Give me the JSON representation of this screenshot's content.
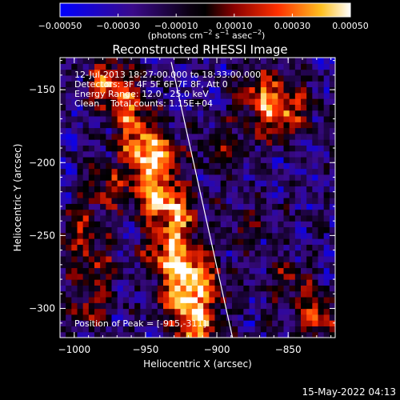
{
  "chart_data": {
    "type": "heatmap",
    "title": "Reconstructed RHESSI Image",
    "xlabel": "Heliocentric X (arcsec)",
    "ylabel": "Heliocentric Y (arcsec)",
    "xlim": [
      -1010,
      -817
    ],
    "ylim": [
      -320,
      -128
    ],
    "x_ticks": [
      {
        "value": -1000,
        "label": "−1000"
      },
      {
        "value": -950,
        "label": "−950"
      },
      {
        "value": -900,
        "label": "−900"
      },
      {
        "value": -850,
        "label": "−850"
      }
    ],
    "y_ticks": [
      {
        "value": -150,
        "label": "−150"
      },
      {
        "value": -200,
        "label": "−200"
      },
      {
        "value": -250,
        "label": "−250"
      },
      {
        "value": -300,
        "label": "−300"
      }
    ],
    "colorbar": {
      "min": -0.0005,
      "max": 0.0005,
      "ticks": [
        {
          "value": -0.0005,
          "label": "−0.00050"
        },
        {
          "value": -0.0003,
          "label": "−0.00030"
        },
        {
          "value": -0.0001,
          "label": "−0.00010"
        },
        {
          "value": 0.0001,
          "label": "0.00010"
        },
        {
          "value": 0.0003,
          "label": "0.00030"
        },
        {
          "value": 0.0005,
          "label": "0.00050"
        }
      ],
      "unit_parts": [
        "(photons cm",
        "−2",
        " s",
        "−1",
        " asec",
        "−2",
        ")"
      ]
    },
    "info_lines": [
      "12-Jul-2013 18:27:00.000 to 18:33:00.000",
      "Detectors: 3F 4F 5F 6F 7F 8F, Att 0",
      "Energy Range: 12.0 - 25.0 keV",
      "Clean    Total counts: 1.15E+04"
    ],
    "peak_label": "Position of Peak = [-915,-311]",
    "limb_line": {
      "x1": -932,
      "y1": -131,
      "x2": -889,
      "y2": -320
    },
    "bright_sources": [
      {
        "x": -975,
        "y": -145,
        "amp": 0.0005
      },
      {
        "x": -960,
        "y": -165,
        "amp": 0.0004
      },
      {
        "x": -955,
        "y": -190,
        "amp": 0.0004
      },
      {
        "x": -940,
        "y": -195,
        "amp": 0.00045
      },
      {
        "x": -945,
        "y": -220,
        "amp": 0.0005
      },
      {
        "x": -928,
        "y": -235,
        "amp": 0.0005
      },
      {
        "x": -935,
        "y": -260,
        "amp": 0.00045
      },
      {
        "x": -920,
        "y": -270,
        "amp": 0.0004
      },
      {
        "x": -925,
        "y": -290,
        "amp": 0.0005
      },
      {
        "x": -915,
        "y": -311,
        "amp": 0.0006
      },
      {
        "x": -980,
        "y": -215,
        "amp": 0.0003
      },
      {
        "x": -995,
        "y": -245,
        "amp": 0.0003
      },
      {
        "x": -985,
        "y": -270,
        "amp": 0.00025
      },
      {
        "x": -990,
        "y": -300,
        "amp": 0.0003
      },
      {
        "x": -870,
        "y": -150,
        "amp": 0.0004
      },
      {
        "x": -860,
        "y": -170,
        "amp": 0.00035
      },
      {
        "x": -845,
        "y": -160,
        "amp": 0.0003
      },
      {
        "x": -895,
        "y": -190,
        "amp": 0.00025
      },
      {
        "x": -880,
        "y": -245,
        "amp": 0.0002
      },
      {
        "x": -850,
        "y": -280,
        "amp": 0.00025
      },
      {
        "x": -830,
        "y": -305,
        "amp": 0.0004
      },
      {
        "x": -905,
        "y": -285,
        "amp": 0.0003
      }
    ]
  },
  "footer": {
    "timestamp": "15-May-2022 04:13"
  }
}
